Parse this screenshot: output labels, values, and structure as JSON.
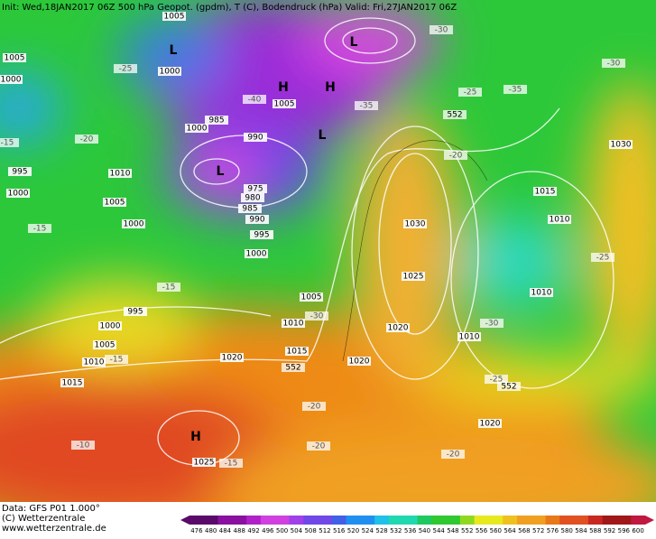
{
  "header": {
    "text": "Init: Wed,18JAN2017 06Z 500 hPa Geopot. (gpdm), T (C), Bodendruck (hPa) Valid: Fri,27JAN2017 06Z"
  },
  "footer": {
    "lines": [
      "Data: GFS P01 1.000°",
      "(C) Wetterzentrale",
      "www.wetterzentrale.de"
    ]
  },
  "colorbar": {
    "labels": [
      476,
      480,
      484,
      488,
      492,
      496,
      500,
      504,
      508,
      512,
      516,
      520,
      524,
      528,
      532,
      536,
      540,
      544,
      548,
      552,
      556,
      560,
      564,
      568,
      572,
      576,
      580,
      584,
      588,
      592,
      596,
      600
    ]
  },
  "map": {
    "centers": [
      "H",
      "L",
      "L",
      "L",
      "L",
      "H",
      "H"
    ],
    "isobars": [
      "1030",
      "1025",
      "1020",
      "1020",
      "1015",
      "1010",
      "1005",
      "1000",
      "995",
      "1000",
      "1005",
      "1010",
      "1000",
      "995",
      "1015",
      "1010",
      "1005",
      "1000",
      "995",
      "1020",
      "1025",
      "1020",
      "1010",
      "1010",
      "1010",
      "1015",
      "1030",
      "1000",
      "990",
      "985",
      "975",
      "980",
      "985",
      "990",
      "1005",
      "1005",
      "1000",
      "1005",
      "1000"
    ],
    "temps": [
      "-25",
      "-20",
      "-15",
      "-15",
      "-30",
      "-20",
      "-20",
      "-15",
      "-10",
      "-20",
      "-25",
      "-30",
      "-25",
      "-20",
      "-35",
      "-30",
      "-30",
      "-35",
      "-40",
      "-25",
      "-15",
      "-15"
    ],
    "geopot": [
      "552",
      "552",
      "552"
    ]
  }
}
